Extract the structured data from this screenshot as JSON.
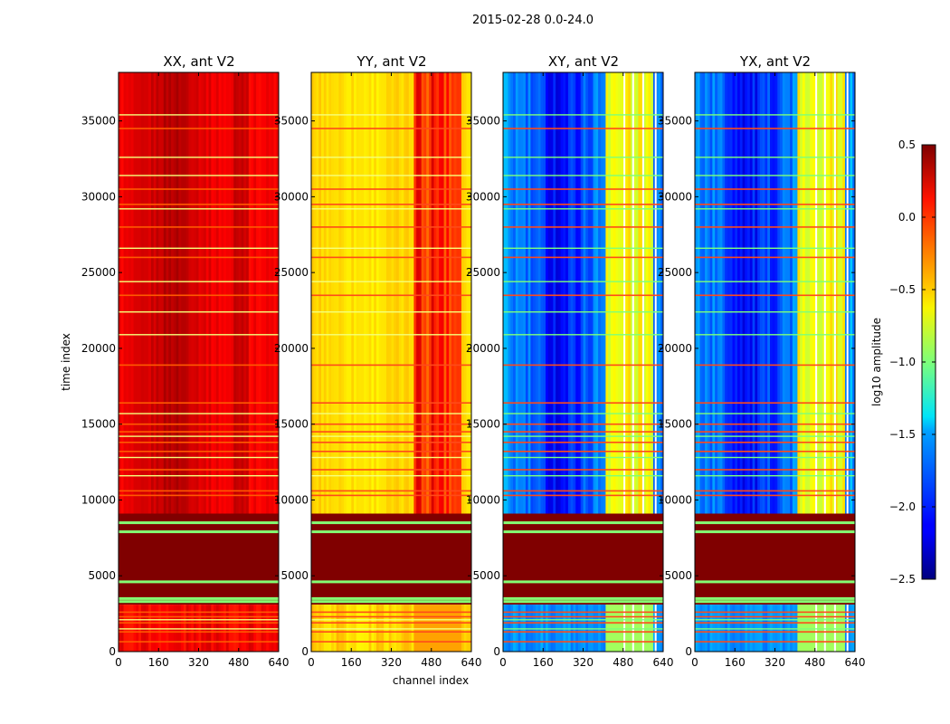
{
  "chart_data": {
    "type": "heatmap",
    "suptitle": "2015-02-28 0.0-24.0",
    "xlabel": "channel index",
    "ylabel": "time index",
    "x_range": [
      0,
      640
    ],
    "y_range": [
      0,
      38200
    ],
    "x_ticks": [
      "0",
      "160",
      "320",
      "480",
      "640"
    ],
    "y_ticks": [
      "0",
      "5000",
      "10000",
      "15000",
      "20000",
      "25000",
      "30000",
      "35000"
    ],
    "panels": [
      {
        "title": "XX, ant V2",
        "base_log_amp": 0.15,
        "center_log_amp": 0.35,
        "rfi_band": false
      },
      {
        "title": "YY, ant V2",
        "base_log_amp": -0.5,
        "center_log_amp": -0.55,
        "rfi_band": true
      },
      {
        "title": "XY, ant V2",
        "base_log_amp": -1.7,
        "center_log_amp": -2.1,
        "rfi_band": true
      },
      {
        "title": "YX, ant V2",
        "base_log_amp": -1.7,
        "center_log_amp": -2.1,
        "rfi_band": true
      }
    ],
    "flagged_block": {
      "time_start": 3100,
      "time_end": 9100,
      "log_amp": 0.5,
      "green_lines": [
        3300,
        3500,
        4600,
        7900,
        8500
      ]
    },
    "colorbar": {
      "label": "log10 amplitude",
      "min": -2.5,
      "max": 0.5,
      "ticks": [
        "0.5",
        "0.0",
        "−0.5",
        "−1.0",
        "−1.5",
        "−2.0",
        "−2.5"
      ],
      "colormap": "jet"
    }
  }
}
